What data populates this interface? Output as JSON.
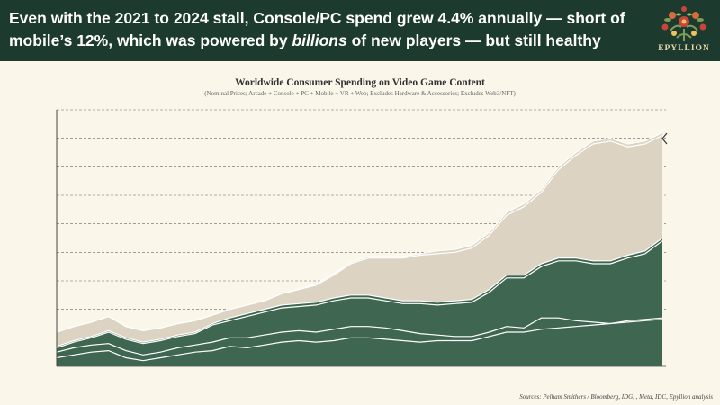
{
  "header": {
    "headline_part1": "Even with the 2021 to 2024 stall, Console/PC spend grew 4.4% annually — short of mobile’s 12%, which was powered by ",
    "headline_emphasis": "billions",
    "headline_part2": " of new players — but still healthy",
    "brand": "EPYLLION"
  },
  "footer": {
    "source": "Sources: Pelham Smithers / Bloomberg, IDG,            , Meta, IDC, Epyllion analysis"
  },
  "colors": {
    "banner": "#1D3A2E",
    "background": "#FBF6EA",
    "dark_green": "#3F6650",
    "beige": "#DCD3C2",
    "gridline": "#666666"
  },
  "chart_data": {
    "type": "area",
    "stacked": true,
    "title": "Worldwide Consumer Spending on Video Game Content",
    "subtitle": "(Nominal Prices; Arcade + Console + PC + Mobile + VR + Web; Excludes Hardware & Accessories; Excludes Web3/NFT)",
    "ylim": [
      0,
      9
    ],
    "gridlines": "horizontal dashed",
    "x": [
      0,
      1,
      2,
      3,
      4,
      5,
      6,
      7,
      8,
      9,
      10,
      11,
      12,
      13,
      14,
      15,
      16,
      17,
      18,
      19,
      20,
      21,
      22,
      23,
      24,
      25,
      26,
      27,
      28,
      29,
      30,
      31,
      32,
      33,
      34,
      35
    ],
    "series": [
      {
        "values": [
          0.3,
          0.4,
          0.5,
          0.55,
          0.3,
          0.2,
          0.3,
          0.4,
          0.5,
          0.55,
          0.7,
          0.65,
          0.75,
          0.85,
          0.9,
          0.85,
          0.9,
          1.0,
          1.0,
          0.95,
          0.9,
          0.85,
          0.9,
          0.9,
          0.9,
          1.05,
          1.2,
          1.2,
          1.3,
          1.35,
          1.4,
          1.45,
          1.5,
          1.55,
          1.6,
          1.65
        ]
      },
      {
        "values": [
          0.2,
          0.25,
          0.25,
          0.25,
          0.25,
          0.2,
          0.2,
          0.25,
          0.25,
          0.3,
          0.3,
          0.35,
          0.35,
          0.35,
          0.35,
          0.35,
          0.4,
          0.4,
          0.4,
          0.4,
          0.35,
          0.3,
          0.2,
          0.15,
          0.15,
          0.15,
          0.2,
          0.15,
          0.4,
          0.35,
          0.2,
          0.1,
          0.0,
          0.05,
          0.05,
          0.05
        ]
      },
      {
        "values": [
          0.15,
          0.2,
          0.25,
          0.4,
          0.4,
          0.4,
          0.4,
          0.4,
          0.4,
          0.6,
          0.6,
          0.75,
          0.8,
          0.85,
          0.85,
          0.95,
          1.0,
          1.0,
          1.0,
          0.95,
          0.95,
          1.05,
          1.05,
          1.15,
          1.2,
          1.4,
          1.7,
          1.75,
          1.8,
          2.0,
          2.1,
          2.05,
          2.1,
          2.2,
          2.3,
          2.7
        ]
      },
      {
        "values": [
          0.05,
          0.05,
          0.05,
          0.05,
          0.05,
          0.05,
          0.05,
          0.05,
          0.05,
          0.05,
          0.1,
          0.1,
          0.1,
          0.1,
          0.1,
          0.1,
          0.1,
          0.1,
          0.1,
          0.1,
          0.1,
          0.1,
          0.1,
          0.1,
          0.1,
          0.1,
          0.1,
          0.1,
          0.1,
          0.1,
          0.1,
          0.1,
          0.1,
          0.1,
          0.1,
          0.1
        ]
      },
      {
        "values": [
          0.5,
          0.5,
          0.5,
          0.5,
          0.4,
          0.4,
          0.4,
          0.4,
          0.4,
          0.3,
          0.3,
          0.3,
          0.3,
          0.4,
          0.5,
          0.6,
          0.8,
          1.1,
          1.3,
          1.4,
          1.5,
          1.6,
          1.7,
          1.7,
          1.8,
          1.9,
          2.1,
          2.4,
          2.5,
          3.1,
          3.6,
          4.1,
          4.2,
          3.8,
          3.75,
          3.6
        ]
      },
      {
        "values": [
          0.0,
          0.0,
          0.0,
          0.0,
          0.0,
          0.0,
          0.0,
          0.0,
          0.0,
          0.0,
          0.0,
          0.0,
          0.0,
          0.0,
          0.0,
          0.05,
          0.05,
          0.05,
          0.05,
          0.05,
          0.05,
          0.05,
          0.1,
          0.1,
          0.1,
          0.1,
          0.1,
          0.1,
          0.1,
          0.1,
          0.1,
          0.1,
          0.1,
          0.1,
          0.1,
          0.1
        ]
      }
    ]
  }
}
